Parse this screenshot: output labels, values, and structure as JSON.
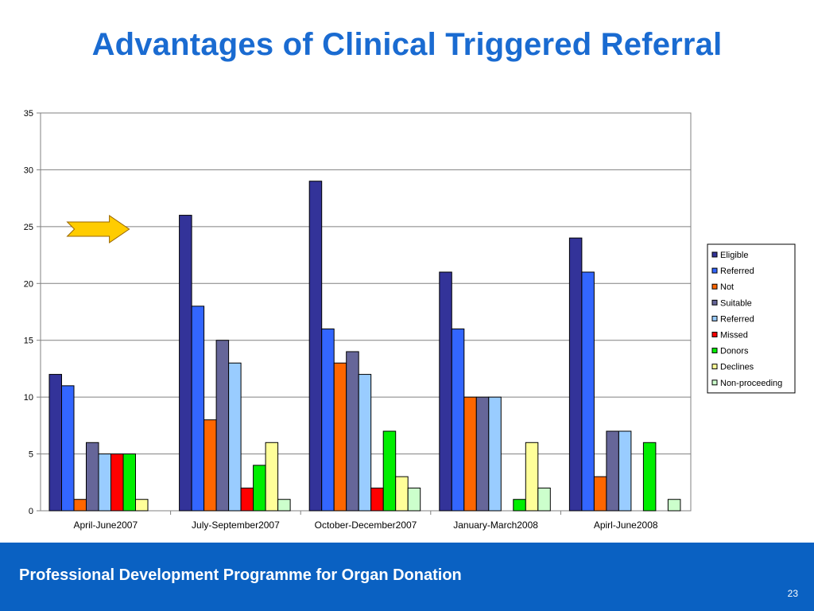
{
  "slide": {
    "title": "Advantages of Clinical Triggered Referral",
    "footer_text": "Professional Development Programme for Organ Donation",
    "page_number": "23",
    "footer_color": "#0a61c2",
    "title_color": "#1a6bd1",
    "annotation_icon": "arrow-right-icon"
  },
  "chart_data": {
    "type": "bar",
    "categories": [
      "April-June2007",
      "July-September2007",
      "October-December2007",
      "January-March2008",
      "Apirl-June2008"
    ],
    "ylim": [
      0,
      35
    ],
    "yticks": [
      0,
      5,
      10,
      15,
      20,
      25,
      30,
      35
    ],
    "grid": true,
    "legend_position": "right",
    "annotation": {
      "type": "arrow",
      "points_to": "July-September2007"
    },
    "series": [
      {
        "name": "Eligible",
        "color": "#333399",
        "values": [
          12,
          26,
          29,
          21,
          24
        ]
      },
      {
        "name": "Referred",
        "color": "#3366ff",
        "values": [
          11,
          18,
          16,
          16,
          21
        ]
      },
      {
        "name": "Not",
        "color": "#ff6600",
        "values": [
          1,
          8,
          13,
          10,
          3
        ]
      },
      {
        "name": "Suitable",
        "color": "#666699",
        "values": [
          6,
          15,
          14,
          10,
          7
        ]
      },
      {
        "name": "Referred",
        "color": "#99ccff",
        "values": [
          5,
          13,
          12,
          10,
          7
        ]
      },
      {
        "name": "Missed",
        "color": "#ff0000",
        "values": [
          5,
          2,
          2,
          0,
          0
        ]
      },
      {
        "name": "Donors",
        "color": "#00ee00",
        "values": [
          5,
          4,
          7,
          1,
          6
        ]
      },
      {
        "name": "Declines",
        "color": "#ffff99",
        "values": [
          1,
          6,
          3,
          6,
          0
        ]
      },
      {
        "name": "Non-proceeding",
        "color": "#ccffcc",
        "values": [
          0,
          1,
          2,
          2,
          1
        ]
      }
    ]
  }
}
